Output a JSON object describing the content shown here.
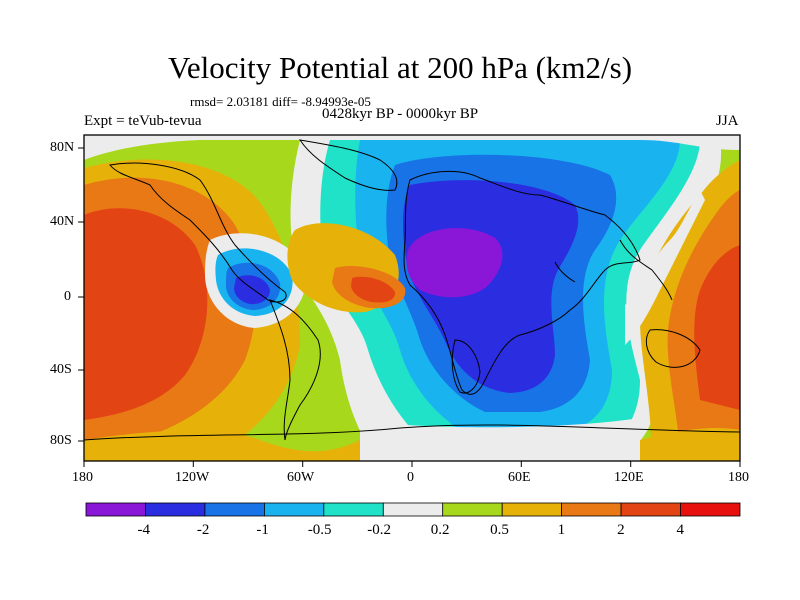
{
  "title": "Velocity Potential at 200 hPa (km2/s)",
  "stats": "rmsd= 2.03181 diff= -8.94993e-05",
  "experiment": "Expt = teVub-tevua",
  "period": "0428kyr BP - 0000kyr BP",
  "season": "JJA",
  "axes": {
    "lon_ticks": [
      "180",
      "120W",
      "60W",
      "0",
      "60E",
      "120E",
      "180"
    ],
    "lat_ticks": [
      "80N",
      "40N",
      "0",
      "40S",
      "80S"
    ]
  },
  "colorbar": {
    "labels": [
      "-4",
      "-2",
      "-1",
      "-0.5",
      "-0.2",
      "0.2",
      "0.5",
      "1",
      "2",
      "4"
    ],
    "colors": [
      "#8a16d8",
      "#2b2ee0",
      "#1773e6",
      "#19b4ef",
      "#1fe2c9",
      "#ececec",
      "#a8d81c",
      "#e6b20a",
      "#e87914",
      "#e34414",
      "#e8100e"
    ]
  }
}
